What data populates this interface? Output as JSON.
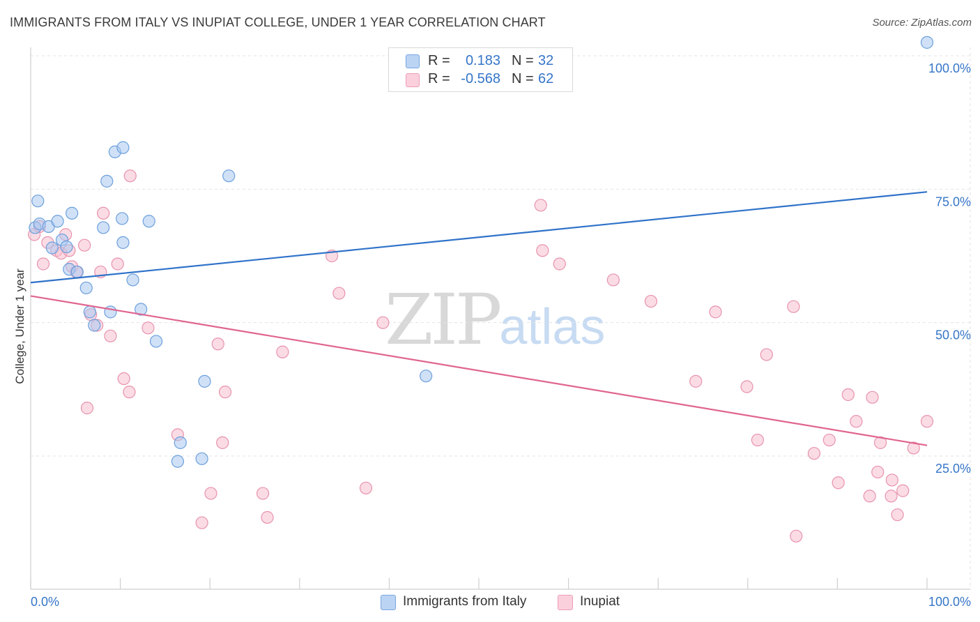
{
  "header": {
    "title": "IMMIGRANTS FROM ITALY VS INUPIAT COLLEGE, UNDER 1 YEAR CORRELATION CHART",
    "source": "Source: ZipAtlas.com"
  },
  "watermark": {
    "zip": "ZIP",
    "atlas": "atlas"
  },
  "legend": {
    "rows": [
      {
        "r_label": "R =",
        "r_value": "0.183",
        "n_label": "N =",
        "n_value": "32"
      },
      {
        "r_label": "R =",
        "r_value": "-0.568",
        "n_label": "N =",
        "n_value": "62"
      }
    ],
    "bottom": [
      {
        "label": "Immigrants from Italy"
      },
      {
        "label": "Inupiat"
      }
    ]
  },
  "colors": {
    "italy_fill": "#a9c8f0",
    "italy_stroke": "#6b9fdc",
    "italy_line": "#2f72c9",
    "inupiat_fill": "#f7bfd0",
    "inupiat_stroke": "#e892ad",
    "inupiat_line": "#e0648f",
    "axis_text": "#3575c8",
    "grid": "#e3e3e3"
  },
  "chart_data": {
    "type": "scatter",
    "title": "IMMIGRANTS FROM ITALY VS INUPIAT COLLEGE, UNDER 1 YEAR CORRELATION CHART",
    "xlabel": "",
    "ylabel": "College, Under 1 year",
    "xlim": [
      0,
      100
    ],
    "ylim": [
      0,
      105
    ],
    "x_tick_labels": [
      "0.0%",
      "100.0%"
    ],
    "y_ticks": [
      25,
      50,
      75,
      100
    ],
    "y_tick_labels": [
      "25.0%",
      "50.0%",
      "75.0%",
      "100.0%"
    ],
    "grid": true,
    "series": [
      {
        "name": "Immigrants from Italy",
        "R": 0.183,
        "N": 32,
        "trend": {
          "x": [
            0,
            100
          ],
          "y": [
            57.5,
            74.5
          ]
        },
        "points": [
          [
            0.5,
            67.8
          ],
          [
            1.0,
            68.5
          ],
          [
            0.8,
            72.8
          ],
          [
            2.0,
            68.0
          ],
          [
            2.4,
            64.0
          ],
          [
            3.0,
            69.0
          ],
          [
            3.5,
            65.5
          ],
          [
            4.6,
            70.5
          ],
          [
            4.0,
            64.2
          ],
          [
            4.3,
            60.0
          ],
          [
            5.2,
            59.5
          ],
          [
            6.2,
            56.5
          ],
          [
            6.6,
            52.0
          ],
          [
            7.1,
            49.5
          ],
          [
            8.1,
            67.8
          ],
          [
            8.5,
            76.5
          ],
          [
            8.9,
            52.0
          ],
          [
            9.4,
            82.0
          ],
          [
            10.2,
            69.5
          ],
          [
            10.3,
            82.8
          ],
          [
            10.3,
            65.0
          ],
          [
            11.4,
            58.0
          ],
          [
            12.3,
            52.5
          ],
          [
            13.2,
            69.0
          ],
          [
            14.0,
            46.5
          ],
          [
            16.4,
            24.0
          ],
          [
            16.7,
            27.5
          ],
          [
            19.1,
            24.5
          ],
          [
            19.4,
            39.0
          ],
          [
            22.1,
            77.5
          ],
          [
            44.1,
            40.0
          ],
          [
            100.0,
            102.5
          ]
        ]
      },
      {
        "name": "Inupiat",
        "R": -0.568,
        "N": 62,
        "trend": {
          "x": [
            0,
            100
          ],
          "y": [
            55.0,
            27.0
          ]
        },
        "points": [
          [
            0.4,
            66.5
          ],
          [
            1.0,
            68.0
          ],
          [
            1.4,
            61.0
          ],
          [
            1.9,
            65.0
          ],
          [
            2.9,
            63.5
          ],
          [
            3.4,
            63.0
          ],
          [
            3.9,
            66.5
          ],
          [
            4.3,
            63.5
          ],
          [
            4.6,
            60.5
          ],
          [
            5.1,
            59.5
          ],
          [
            6.0,
            64.5
          ],
          [
            6.3,
            34.0
          ],
          [
            6.7,
            51.5
          ],
          [
            7.4,
            49.5
          ],
          [
            7.8,
            59.5
          ],
          [
            8.1,
            70.5
          ],
          [
            8.9,
            47.5
          ],
          [
            9.7,
            61.0
          ],
          [
            10.4,
            39.5
          ],
          [
            11.0,
            37.0
          ],
          [
            11.1,
            77.5
          ],
          [
            13.1,
            49.0
          ],
          [
            16.4,
            29.0
          ],
          [
            19.1,
            12.5
          ],
          [
            20.1,
            18.0
          ],
          [
            20.9,
            46.0
          ],
          [
            21.4,
            27.5
          ],
          [
            21.7,
            37.0
          ],
          [
            25.9,
            18.0
          ],
          [
            26.4,
            13.5
          ],
          [
            28.1,
            44.5
          ],
          [
            34.4,
            55.5
          ],
          [
            33.6,
            62.5
          ],
          [
            37.4,
            19.0
          ],
          [
            39.3,
            50.0
          ],
          [
            56.9,
            72.0
          ],
          [
            57.1,
            63.5
          ],
          [
            59.0,
            61.0
          ],
          [
            65.0,
            58.0
          ],
          [
            69.2,
            54.0
          ],
          [
            74.2,
            39.0
          ],
          [
            76.4,
            52.0
          ],
          [
            79.9,
            38.0
          ],
          [
            81.1,
            28.0
          ],
          [
            82.1,
            44.0
          ],
          [
            85.1,
            53.0
          ],
          [
            85.4,
            10.0
          ],
          [
            87.4,
            25.5
          ],
          [
            89.1,
            28.0
          ],
          [
            90.1,
            20.0
          ],
          [
            91.2,
            36.5
          ],
          [
            92.1,
            31.5
          ],
          [
            93.6,
            17.5
          ],
          [
            93.9,
            36.0
          ],
          [
            94.5,
            22.0
          ],
          [
            94.8,
            27.5
          ],
          [
            96.0,
            17.5
          ],
          [
            96.1,
            20.5
          ],
          [
            96.7,
            14.0
          ],
          [
            97.3,
            18.5
          ],
          [
            98.5,
            26.5
          ],
          [
            100.0,
            31.5
          ]
        ]
      }
    ]
  }
}
